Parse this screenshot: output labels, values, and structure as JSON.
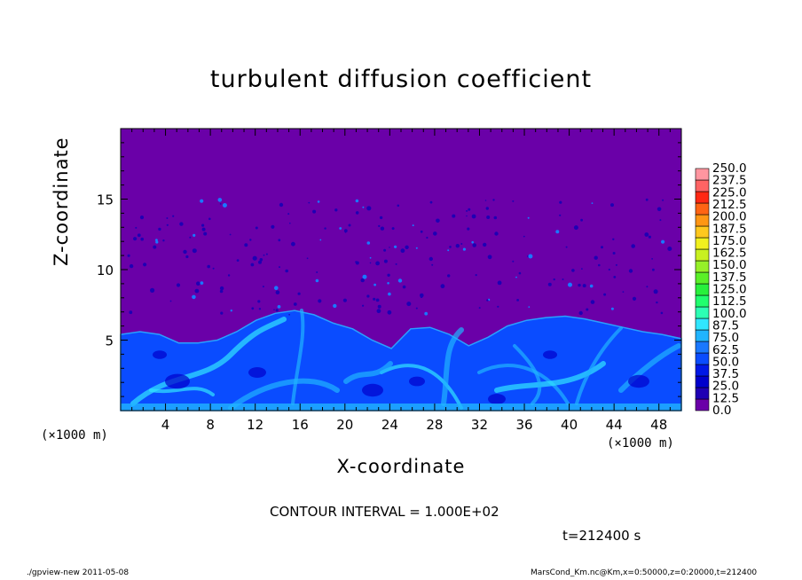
{
  "chart_data": {
    "type": "heatmap",
    "title": "turbulent diffusion coefficient",
    "xlabel": "X-coordinate",
    "ylabel": "Z-coordinate",
    "x_unit": "(×1000 m)",
    "y_unit": "(×1000 m)",
    "xlim": [
      0,
      50
    ],
    "ylim": [
      0,
      20
    ],
    "x_ticks": [
      4,
      8,
      12,
      16,
      20,
      24,
      28,
      32,
      36,
      40,
      44,
      48
    ],
    "y_ticks": [
      5,
      10,
      15
    ],
    "colorbar": {
      "levels": [
        "0.0",
        "12.5",
        "25.0",
        "37.5",
        "50.0",
        "62.5",
        "75.0",
        "87.5",
        "100.0",
        "112.5",
        "125.0",
        "137.5",
        "150.0",
        "162.5",
        "175.0",
        "187.5",
        "200.0",
        "212.5",
        "225.0",
        "237.5",
        "250.0"
      ],
      "colors": [
        "#6a00a8",
        "#1f00b4",
        "#0000cc",
        "#0018e6",
        "#0a4cff",
        "#1a78ff",
        "#20b4ff",
        "#30e6ff",
        "#2cffb4",
        "#20ff6e",
        "#28f03c",
        "#5af028",
        "#96f028",
        "#c8f020",
        "#f0f01e",
        "#ffc81e",
        "#ff9614",
        "#ff6414",
        "#ff2814",
        "#ff6464",
        "#ff96a0"
      ]
    },
    "contour_interval": "CONTOUR INTERVAL = 1.000E+02",
    "time_label": "t=212400 s",
    "footer_left": "./gpview-new  2011-05-08",
    "footer_right": "MarsCond_Km.nc@Km,x=0:50000,z=0:20000,t=212400",
    "background_color": "#6a00a8",
    "boundary_layer_top_km": [
      5.4,
      5.6,
      5.4,
      4.8,
      4.8,
      5.0,
      5.6,
      6.4,
      6.9,
      7.1,
      6.8,
      6.2,
      5.8,
      5.0,
      4.4,
      5.8,
      5.9,
      5.4,
      4.6,
      5.2,
      6.0,
      6.4,
      6.6,
      6.7,
      6.5,
      6.2,
      5.9,
      5.6,
      5.4,
      5.1
    ]
  }
}
